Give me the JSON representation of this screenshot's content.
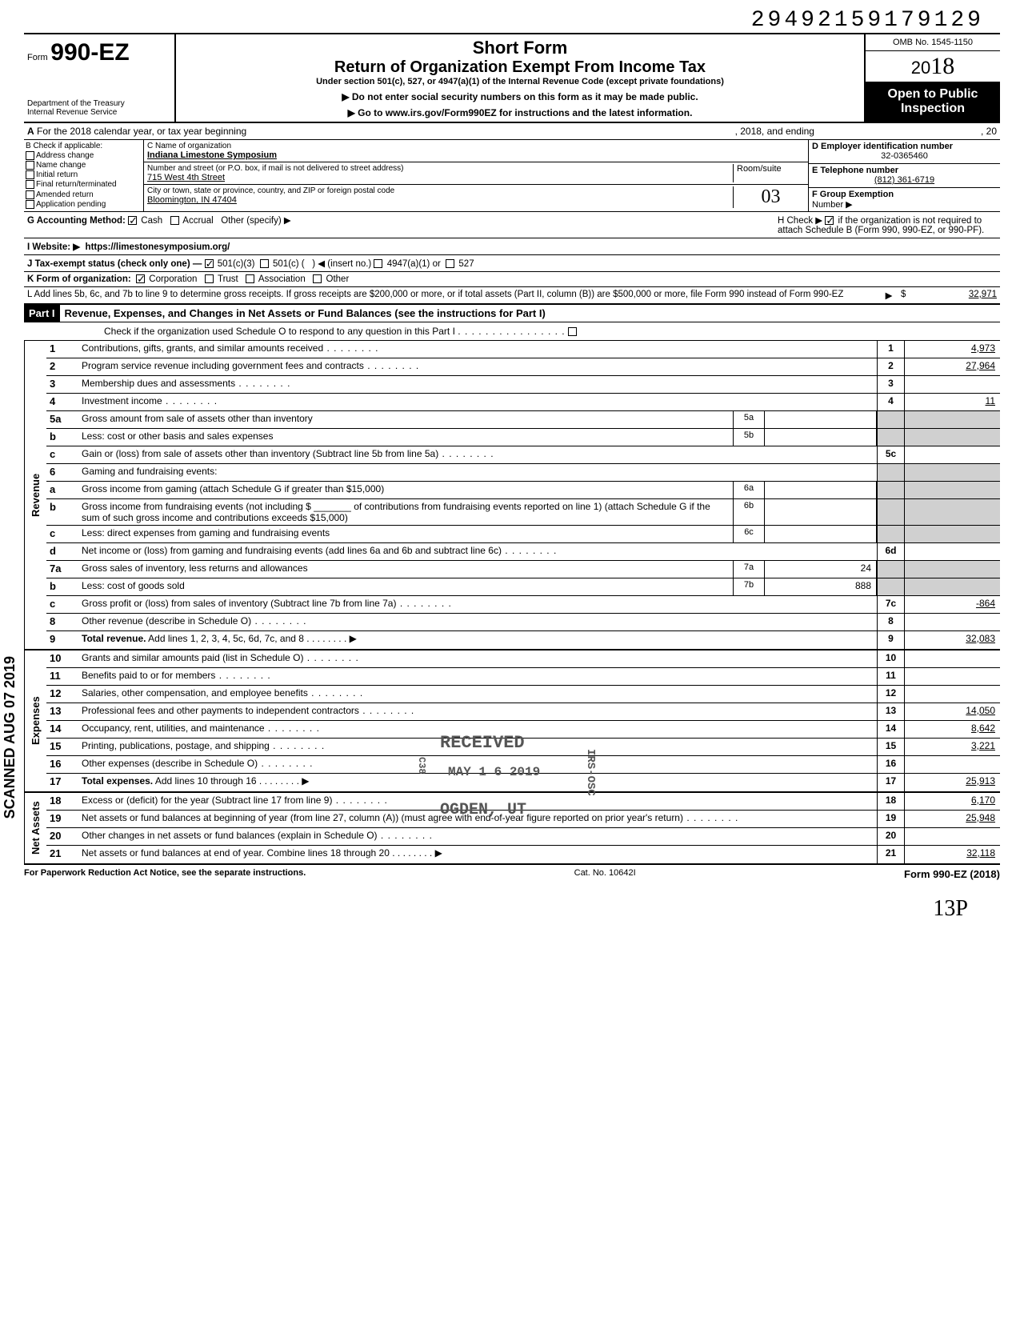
{
  "top_number": "29492159179129",
  "header": {
    "form_prefix": "Form",
    "form_number": "990-EZ",
    "dept1": "Department of the Treasury",
    "dept2": "Internal Revenue Service",
    "title1": "Short Form",
    "title2": "Return of Organization Exempt From Income Tax",
    "subtitle": "Under section 501(c), 527, or 4947(a)(1) of the Internal Revenue Code (except private foundations)",
    "note1": "▶ Do not enter social security numbers on this form as it may be made public.",
    "note2": "▶ Go to www.irs.gov/Form990EZ for instructions and the latest information.",
    "omb": "OMB No. 1545-1150",
    "year_prefix": "20",
    "year_suffix": "18",
    "public1": "Open to Public",
    "public2": "Inspection"
  },
  "row_a": {
    "label_a": "A",
    "text1": "For the 2018 calendar year, or tax year beginning",
    "text2": ", 2018, and ending",
    "text3": ", 20"
  },
  "section_b": {
    "label": "B  Check if applicable:",
    "items": [
      "Address change",
      "Name change",
      "Initial return",
      "Final return/terminated",
      "Amended return",
      "Application pending"
    ]
  },
  "section_c": {
    "label": "C  Name of organization",
    "org": "Indiana Limestone Symposium",
    "street_label": "Number and street (or P.O. box, if mail is not delivered to street address)",
    "street": "715 West 4th Street",
    "room_label": "Room/suite",
    "city_label": "City or town, state or province, country, and ZIP or foreign postal code",
    "city": "Bloomington, IN  47404",
    "hand_num": "03"
  },
  "section_d": {
    "label": "D Employer identification number",
    "value": "32-0365460",
    "e_label": "E  Telephone number",
    "e_value": "(812) 361-6719",
    "f_label": "F  Group Exemption",
    "f_label2": "Number  ▶"
  },
  "row_g": {
    "label": "G  Accounting Method:",
    "opts": [
      "Cash",
      "Accrual",
      "Other (specify) ▶"
    ],
    "h_label": "H  Check ▶",
    "h_text": "if the organization is not required to attach Schedule B (Form 990, 990-EZ, or 990-PF)."
  },
  "row_i": {
    "label": "I   Website: ▶",
    "value": "https://limestonesymposium.org/"
  },
  "row_j": {
    "label": "J  Tax-exempt status (check only one) —",
    "opts": [
      "501(c)(3)",
      "501(c) (",
      "◀ (insert no.)",
      "4947(a)(1) or",
      "527"
    ]
  },
  "row_k": {
    "label": "K  Form of organization:",
    "opts": [
      "Corporation",
      "Trust",
      "Association",
      "Other"
    ]
  },
  "row_l": {
    "text": "L  Add lines 5b, 6c, and 7b to line 9 to determine gross receipts. If gross receipts are $200,000 or more, or if total assets (Part II, column (B)) are $500,000 or more, file Form 990 instead of Form 990-EZ",
    "arrow": "▶",
    "dollar": "$",
    "value": "32,971"
  },
  "part1": {
    "badge": "Part I",
    "title": "Revenue, Expenses, and Changes in Net Assets or Fund Balances (see the instructions for Part I)",
    "check_line": "Check if the organization used Schedule O to respond to any question in this Part I"
  },
  "sections": [
    {
      "label": "Revenue",
      "rows": [
        {
          "n": "1",
          "d": "Contributions, gifts, grants, and similar amounts received",
          "rn": "1",
          "rv": "4,973"
        },
        {
          "n": "2",
          "d": "Program service revenue including government fees and contracts",
          "rn": "2",
          "rv": "27,964"
        },
        {
          "n": "3",
          "d": "Membership dues and assessments",
          "rn": "3",
          "rv": ""
        },
        {
          "n": "4",
          "d": "Investment income",
          "rn": "4",
          "rv": "11"
        },
        {
          "n": "5a",
          "d": "Gross amount from sale of assets other than inventory",
          "mn": "5a",
          "mv": "",
          "shade": true
        },
        {
          "n": "b",
          "d": "Less: cost or other basis and sales expenses",
          "mn": "5b",
          "mv": "",
          "shade": true
        },
        {
          "n": "c",
          "d": "Gain or (loss) from sale of assets other than inventory (Subtract line 5b from line 5a)",
          "rn": "5c",
          "rv": ""
        },
        {
          "n": "6",
          "d": "Gaming and fundraising events:",
          "shade": true,
          "noRight": true
        },
        {
          "n": "a",
          "d": "Gross income from gaming (attach Schedule G if greater than $15,000)",
          "mn": "6a",
          "mv": "",
          "shade": true
        },
        {
          "n": "b",
          "d": "Gross income from fundraising events (not including  $ _______ of contributions from fundraising events reported on line 1) (attach Schedule G if the sum of such gross income and contributions exceeds $15,000)",
          "mn": "6b",
          "mv": "",
          "shade": true
        },
        {
          "n": "c",
          "d": "Less: direct expenses from gaming and fundraising events",
          "mn": "6c",
          "mv": "",
          "shade": true
        },
        {
          "n": "d",
          "d": "Net income or (loss) from gaming and fundraising events (add lines 6a and 6b and subtract line 6c)",
          "rn": "6d",
          "rv": ""
        },
        {
          "n": "7a",
          "d": "Gross sales of inventory, less returns and allowances",
          "mn": "7a",
          "mv": "24",
          "shade": true
        },
        {
          "n": "b",
          "d": "Less: cost of goods sold",
          "mn": "7b",
          "mv": "888",
          "shade": true
        },
        {
          "n": "c",
          "d": "Gross profit or (loss) from sales of inventory (Subtract line 7b from line 7a)",
          "rn": "7c",
          "rv": "-864"
        },
        {
          "n": "8",
          "d": "Other revenue (describe in Schedule O)",
          "rn": "8",
          "rv": ""
        },
        {
          "n": "9",
          "d": "Total revenue. Add lines 1, 2, 3, 4, 5c, 6d, 7c, and 8",
          "rn": "9",
          "rv": "32,083",
          "bold": true,
          "arrow": true
        }
      ]
    },
    {
      "label": "Expenses",
      "rows": [
        {
          "n": "10",
          "d": "Grants and similar amounts paid (list in Schedule O)",
          "rn": "10",
          "rv": ""
        },
        {
          "n": "11",
          "d": "Benefits paid to or for members",
          "rn": "11",
          "rv": ""
        },
        {
          "n": "12",
          "d": "Salaries, other compensation, and employee benefits",
          "rn": "12",
          "rv": ""
        },
        {
          "n": "13",
          "d": "Professional fees and other payments to independent contractors",
          "rn": "13",
          "rv": "14,050"
        },
        {
          "n": "14",
          "d": "Occupancy, rent, utilities, and maintenance",
          "rn": "14",
          "rv": "8,642"
        },
        {
          "n": "15",
          "d": "Printing, publications, postage, and shipping",
          "rn": "15",
          "rv": "3,221"
        },
        {
          "n": "16",
          "d": "Other expenses (describe in Schedule O)",
          "rn": "16",
          "rv": ""
        },
        {
          "n": "17",
          "d": "Total expenses. Add lines 10 through 16",
          "rn": "17",
          "rv": "25,913",
          "bold": true,
          "arrow": true
        }
      ]
    },
    {
      "label": "Net Assets",
      "rows": [
        {
          "n": "18",
          "d": "Excess or (deficit) for the year (Subtract line 17 from line 9)",
          "rn": "18",
          "rv": "6,170"
        },
        {
          "n": "19",
          "d": "Net assets or fund balances at beginning of year (from line 27, column (A)) (must agree with end-of-year figure reported on prior year's return)",
          "rn": "19",
          "rv": "25,948"
        },
        {
          "n": "20",
          "d": "Other changes in net assets or fund balances (explain in Schedule O)",
          "rn": "20",
          "rv": ""
        },
        {
          "n": "21",
          "d": "Net assets or fund balances at end of year. Combine lines 18 through 20",
          "rn": "21",
          "rv": "32,118",
          "arrow": true
        }
      ]
    }
  ],
  "stamps": {
    "received": "RECEIVED",
    "date": "MAY 1 6 2019",
    "ogden": "OGDEN, UT",
    "irs": "IRS-OSC",
    "c38": "C38"
  },
  "footer": {
    "left": "For Paperwork Reduction Act Notice, see the separate instructions.",
    "mid": "Cat. No. 10642I",
    "right": "Form 990-EZ (2018)"
  },
  "hand_note": "13P",
  "scan_label": "SCANNED AUG 07 2019",
  "colors": {
    "bg": "#ffffff",
    "text": "#000000",
    "shade": "#d0d0d0",
    "public_bg": "#000000",
    "public_fg": "#ffffff"
  }
}
